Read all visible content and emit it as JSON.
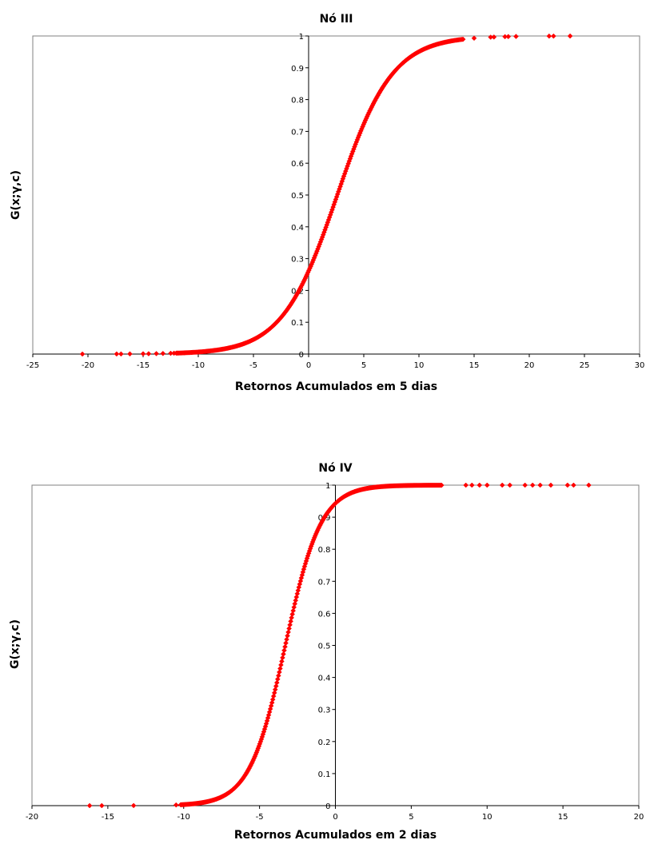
{
  "colors": {
    "series": "#ff0000",
    "frame": "#808080",
    "axis": "#000000"
  },
  "chart_data": [
    {
      "type": "scatter",
      "title": "Nó III",
      "xlabel": "Retornos Acumulados em 5 dias",
      "ylabel": "G(x;γ,c)",
      "xlim": [
        -25,
        30
      ],
      "ylim": [
        0,
        1
      ],
      "xticks": [
        -25,
        -20,
        -15,
        -10,
        -5,
        0,
        5,
        10,
        15,
        20,
        25,
        30
      ],
      "yticks": [
        0,
        0.1,
        0.2,
        0.3,
        0.4,
        0.5,
        0.6,
        0.7,
        0.8,
        0.9,
        1
      ],
      "grid": false,
      "marker": "diamond",
      "curve": {
        "function": "logistic",
        "gamma": 0.4,
        "c": 2.6,
        "x_range": [
          -12,
          14
        ]
      },
      "sparse_points_x": [
        -20.5,
        -17.4,
        -17,
        -16.2,
        -15,
        -14.5,
        -13.8,
        -13.2,
        -12.5,
        -12.2,
        15,
        16.5,
        16.8,
        17.8,
        18.1,
        18.8,
        21.8,
        22.2,
        23.7
      ]
    },
    {
      "type": "scatter",
      "title": "Nó IV",
      "xlabel": "Retornos Acumulados em 2 dias",
      "ylabel": "G(x;γ,c)",
      "xlim": [
        -20,
        20
      ],
      "ylim": [
        0,
        1
      ],
      "xticks": [
        -20,
        -15,
        -10,
        -5,
        0,
        5,
        10,
        15,
        20
      ],
      "yticks": [
        0,
        0.1,
        0.2,
        0.3,
        0.4,
        0.5,
        0.6,
        0.7,
        0.8,
        0.9,
        1
      ],
      "grid": false,
      "marker": "diamond",
      "curve": {
        "function": "logistic",
        "gamma": 0.85,
        "c": -3.3,
        "x_range": [
          -10.2,
          7
        ]
      },
      "sparse_points_x": [
        -16.2,
        -15.4,
        -13.3,
        -10.5,
        8.6,
        9,
        9.5,
        10,
        11,
        11.5,
        12.5,
        13,
        13.5,
        14.2,
        15.3,
        15.7,
        16.7
      ]
    }
  ]
}
